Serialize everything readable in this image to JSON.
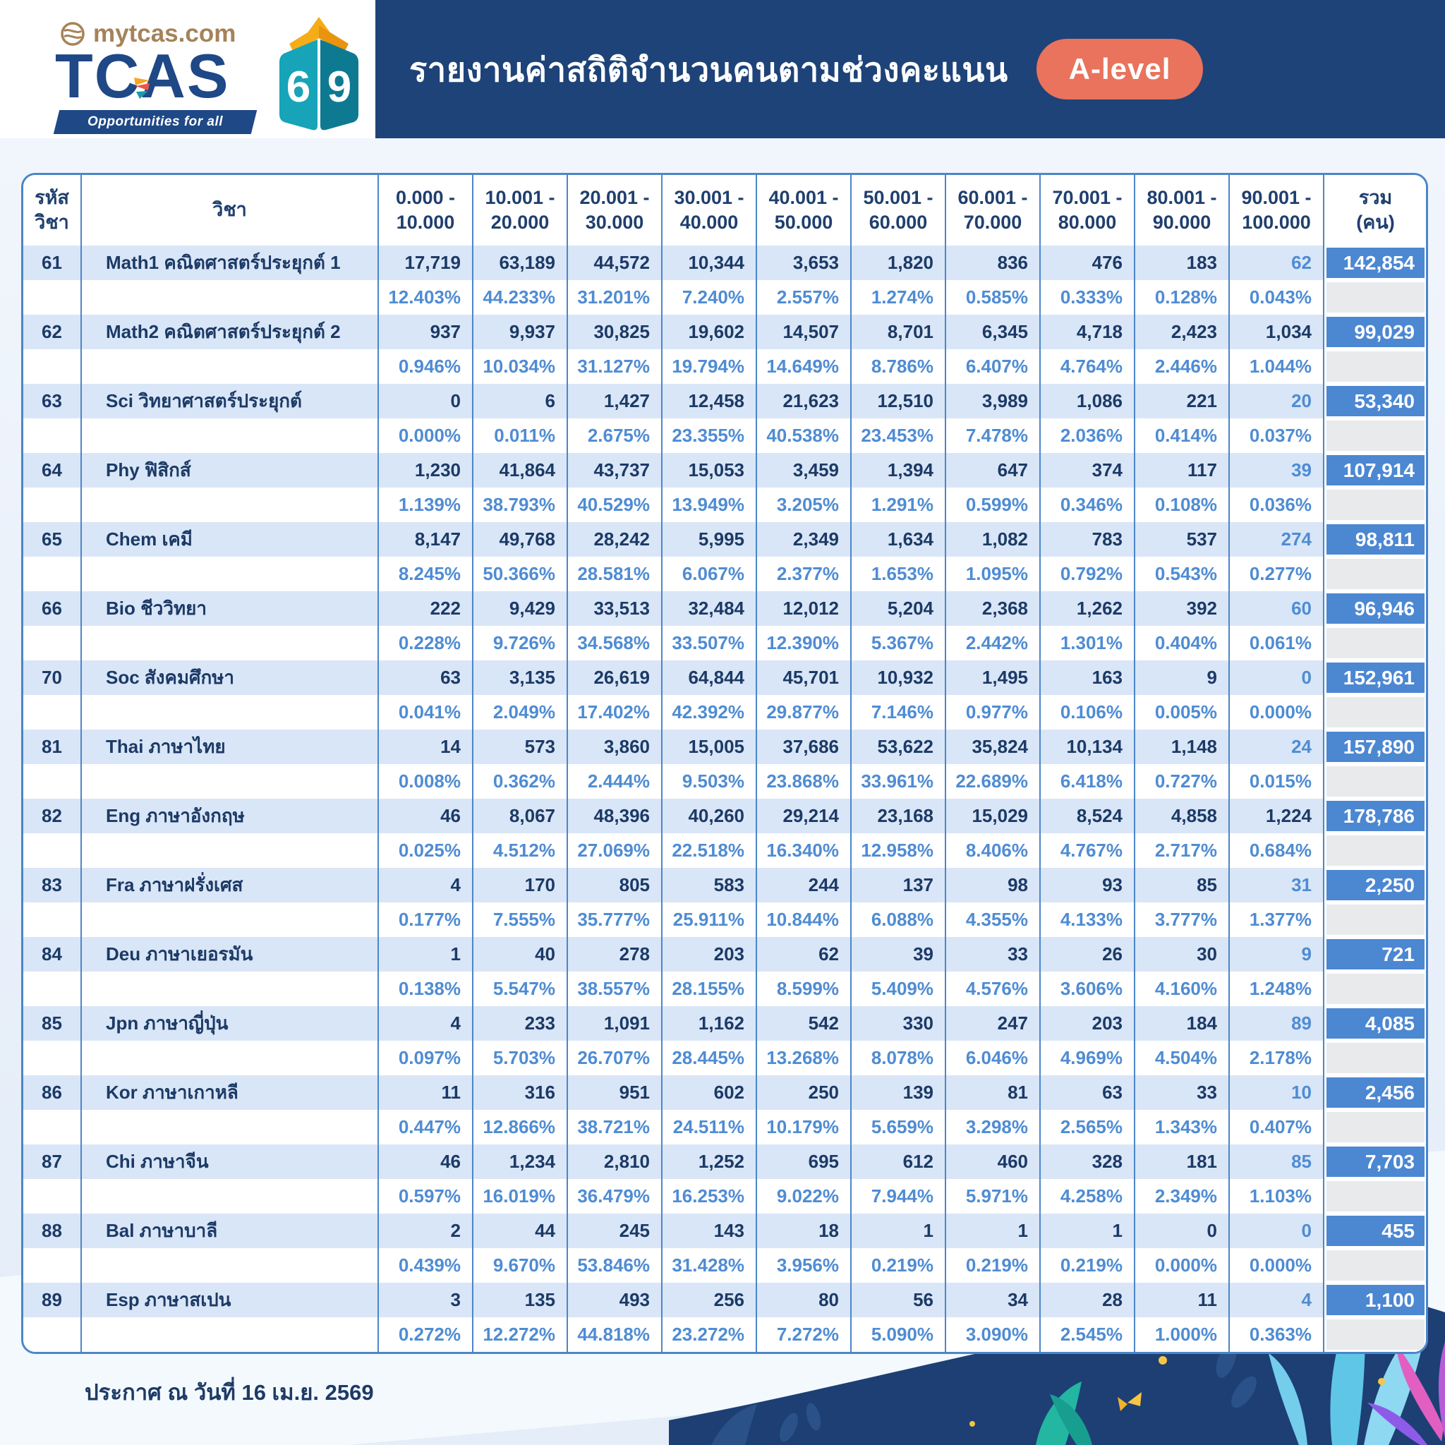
{
  "brand": {
    "site": "mytcas.com",
    "logo_text": "TCAS",
    "tagline": "Opportunities for all",
    "book_left_digit": "6",
    "book_right_digit": "9"
  },
  "header": {
    "title": "รายงานค่าสถิติจำนวนคนตามช่วงคะแนน",
    "badge": "A-level"
  },
  "table": {
    "header": {
      "code": [
        "รหัส",
        "วิชา"
      ],
      "subject": "วิชา",
      "ranges": [
        [
          "0.000 -",
          "10.000"
        ],
        [
          "10.001 -",
          "20.000"
        ],
        [
          "20.001 -",
          "30.000"
        ],
        [
          "30.001 -",
          "40.000"
        ],
        [
          "40.001 -",
          "50.000"
        ],
        [
          "50.001 -",
          "60.000"
        ],
        [
          "60.001 -",
          "70.000"
        ],
        [
          "70.001 -",
          "80.000"
        ],
        [
          "80.001 -",
          "90.000"
        ],
        [
          "90.001 -",
          "100.000"
        ]
      ],
      "total": [
        "รวม",
        "(คน)"
      ]
    },
    "rows": [
      {
        "code": "61",
        "subject": "Math1 คณิตศาสตร์ประยุกต์ 1",
        "counts": [
          "17,719",
          "63,189",
          "44,572",
          "10,344",
          "3,653",
          "1,820",
          "836",
          "476",
          "183",
          "62"
        ],
        "percents": [
          "12.403%",
          "44.233%",
          "31.201%",
          "7.240%",
          "2.557%",
          "1.274%",
          "0.585%",
          "0.333%",
          "0.128%",
          "0.043%"
        ],
        "total": "142,854"
      },
      {
        "code": "62",
        "subject": "Math2 คณิตศาสตร์ประยุกต์ 2",
        "counts": [
          "937",
          "9,937",
          "30,825",
          "19,602",
          "14,507",
          "8,701",
          "6,345",
          "4,718",
          "2,423",
          "1,034"
        ],
        "percents": [
          "0.946%",
          "10.034%",
          "31.127%",
          "19.794%",
          "14.649%",
          "8.786%",
          "6.407%",
          "4.764%",
          "2.446%",
          "1.044%"
        ],
        "total": "99,029"
      },
      {
        "code": "63",
        "subject": "Sci วิทยาศาสตร์ประยุกต์",
        "counts": [
          "0",
          "6",
          "1,427",
          "12,458",
          "21,623",
          "12,510",
          "3,989",
          "1,086",
          "221",
          "20"
        ],
        "percents": [
          "0.000%",
          "0.011%",
          "2.675%",
          "23.355%",
          "40.538%",
          "23.453%",
          "7.478%",
          "2.036%",
          "0.414%",
          "0.037%"
        ],
        "total": "53,340"
      },
      {
        "code": "64",
        "subject": "Phy ฟิสิกส์",
        "counts": [
          "1,230",
          "41,864",
          "43,737",
          "15,053",
          "3,459",
          "1,394",
          "647",
          "374",
          "117",
          "39"
        ],
        "percents": [
          "1.139%",
          "38.793%",
          "40.529%",
          "13.949%",
          "3.205%",
          "1.291%",
          "0.599%",
          "0.346%",
          "0.108%",
          "0.036%"
        ],
        "total": "107,914"
      },
      {
        "code": "65",
        "subject": "Chem เคมี",
        "counts": [
          "8,147",
          "49,768",
          "28,242",
          "5,995",
          "2,349",
          "1,634",
          "1,082",
          "783",
          "537",
          "274"
        ],
        "percents": [
          "8.245%",
          "50.366%",
          "28.581%",
          "6.067%",
          "2.377%",
          "1.653%",
          "1.095%",
          "0.792%",
          "0.543%",
          "0.277%"
        ],
        "total": "98,811"
      },
      {
        "code": "66",
        "subject": "Bio ชีววิทยา",
        "counts": [
          "222",
          "9,429",
          "33,513",
          "32,484",
          "12,012",
          "5,204",
          "2,368",
          "1,262",
          "392",
          "60"
        ],
        "percents": [
          "0.228%",
          "9.726%",
          "34.568%",
          "33.507%",
          "12.390%",
          "5.367%",
          "2.442%",
          "1.301%",
          "0.404%",
          "0.061%"
        ],
        "total": "96,946"
      },
      {
        "code": "70",
        "subject": "Soc สังคมศึกษา",
        "counts": [
          "63",
          "3,135",
          "26,619",
          "64,844",
          "45,701",
          "10,932",
          "1,495",
          "163",
          "9",
          "0"
        ],
        "percents": [
          "0.041%",
          "2.049%",
          "17.402%",
          "42.392%",
          "29.877%",
          "7.146%",
          "0.977%",
          "0.106%",
          "0.005%",
          "0.000%"
        ],
        "total": "152,961"
      },
      {
        "code": "81",
        "subject": "Thai ภาษาไทย",
        "counts": [
          "14",
          "573",
          "3,860",
          "15,005",
          "37,686",
          "53,622",
          "35,824",
          "10,134",
          "1,148",
          "24"
        ],
        "percents": [
          "0.008%",
          "0.362%",
          "2.444%",
          "9.503%",
          "23.868%",
          "33.961%",
          "22.689%",
          "6.418%",
          "0.727%",
          "0.015%"
        ],
        "total": "157,890"
      },
      {
        "code": "82",
        "subject": "Eng ภาษาอังกฤษ",
        "counts": [
          "46",
          "8,067",
          "48,396",
          "40,260",
          "29,214",
          "23,168",
          "15,029",
          "8,524",
          "4,858",
          "1,224"
        ],
        "percents": [
          "0.025%",
          "4.512%",
          "27.069%",
          "22.518%",
          "16.340%",
          "12.958%",
          "8.406%",
          "4.767%",
          "2.717%",
          "0.684%"
        ],
        "total": "178,786"
      },
      {
        "code": "83",
        "subject": "Fra ภาษาฝรั่งเศส",
        "counts": [
          "4",
          "170",
          "805",
          "583",
          "244",
          "137",
          "98",
          "93",
          "85",
          "31"
        ],
        "percents": [
          "0.177%",
          "7.555%",
          "35.777%",
          "25.911%",
          "10.844%",
          "6.088%",
          "4.355%",
          "4.133%",
          "3.777%",
          "1.377%"
        ],
        "total": "2,250"
      },
      {
        "code": "84",
        "subject": "Deu ภาษาเยอรมัน",
        "counts": [
          "1",
          "40",
          "278",
          "203",
          "62",
          "39",
          "33",
          "26",
          "30",
          "9"
        ],
        "percents": [
          "0.138%",
          "5.547%",
          "38.557%",
          "28.155%",
          "8.599%",
          "5.409%",
          "4.576%",
          "3.606%",
          "4.160%",
          "1.248%"
        ],
        "total": "721"
      },
      {
        "code": "85",
        "subject": "Jpn ภาษาญี่ปุ่น",
        "counts": [
          "4",
          "233",
          "1,091",
          "1,162",
          "542",
          "330",
          "247",
          "203",
          "184",
          "89"
        ],
        "percents": [
          "0.097%",
          "5.703%",
          "26.707%",
          "28.445%",
          "13.268%",
          "8.078%",
          "6.046%",
          "4.969%",
          "4.504%",
          "2.178%"
        ],
        "total": "4,085"
      },
      {
        "code": "86",
        "subject": "Kor ภาษาเกาหลี",
        "counts": [
          "11",
          "316",
          "951",
          "602",
          "250",
          "139",
          "81",
          "63",
          "33",
          "10"
        ],
        "percents": [
          "0.447%",
          "12.866%",
          "38.721%",
          "24.511%",
          "10.179%",
          "5.659%",
          "3.298%",
          "2.565%",
          "1.343%",
          "0.407%"
        ],
        "total": "2,456"
      },
      {
        "code": "87",
        "subject": "Chi ภาษาจีน",
        "counts": [
          "46",
          "1,234",
          "2,810",
          "1,252",
          "695",
          "612",
          "460",
          "328",
          "181",
          "85"
        ],
        "percents": [
          "0.597%",
          "16.019%",
          "36.479%",
          "16.253%",
          "9.022%",
          "7.944%",
          "5.971%",
          "4.258%",
          "2.349%",
          "1.103%"
        ],
        "total": "7,703"
      },
      {
        "code": "88",
        "subject": "Bal ภาษาบาลี",
        "counts": [
          "2",
          "44",
          "245",
          "143",
          "18",
          "1",
          "1",
          "1",
          "0",
          "0"
        ],
        "percents": [
          "0.439%",
          "9.670%",
          "53.846%",
          "31.428%",
          "3.956%",
          "0.219%",
          "0.219%",
          "0.219%",
          "0.000%",
          "0.000%"
        ],
        "total": "455"
      },
      {
        "code": "89",
        "subject": "Esp ภาษาสเปน",
        "counts": [
          "3",
          "135",
          "493",
          "256",
          "80",
          "56",
          "34",
          "28",
          "11",
          "4"
        ],
        "percents": [
          "0.272%",
          "12.272%",
          "44.818%",
          "23.272%",
          "7.272%",
          "5.090%",
          "3.090%",
          "2.545%",
          "1.000%",
          "0.363%"
        ],
        "total": "1,100"
      }
    ]
  },
  "footer": {
    "announcement": "ประกาศ ณ วันที่ 16 เม.ย. 2569"
  },
  "colors": {
    "header_navy": "#1e4379",
    "badge_coral": "#e9735c",
    "table_line_blue": "#4c86c8",
    "count_row_bg": "#d9e6f7",
    "dark_text": "#1c3a66",
    "percent_blue": "#4f8cd3",
    "total_cell_bg": "#4c87d2",
    "logo_navy": "#1e4886",
    "logo_brown": "#a5835a",
    "book_yellow": "#f5ad17",
    "book_teal": "#17a3b8"
  }
}
